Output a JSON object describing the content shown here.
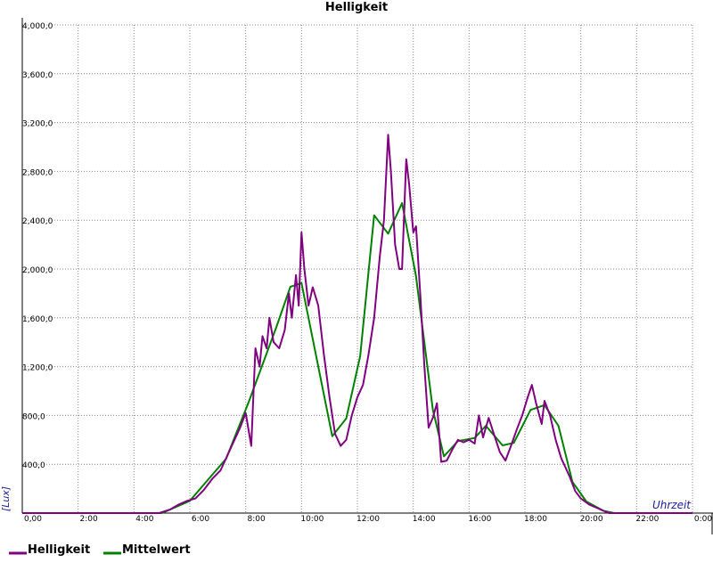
{
  "chart_data": {
    "type": "line",
    "title": "Helligkeit",
    "x_label": "Uhrzeit",
    "y_label": "[Lux]",
    "xlim": [
      0,
      24
    ],
    "ylim": [
      0,
      4000
    ],
    "grid": true,
    "xticks": [
      {
        "value": 0,
        "label": "0,00"
      },
      {
        "value": 2,
        "label": "2:00"
      },
      {
        "value": 4,
        "label": "4:00"
      },
      {
        "value": 6,
        "label": "6:00"
      },
      {
        "value": 8,
        "label": "8:00"
      },
      {
        "value": 10,
        "label": "10:00"
      },
      {
        "value": 12,
        "label": "12:00"
      },
      {
        "value": 14,
        "label": "14:00"
      },
      {
        "value": 16,
        "label": "16:00"
      },
      {
        "value": 18,
        "label": "18:00"
      },
      {
        "value": 20,
        "label": "20:00"
      },
      {
        "value": 22,
        "label": "22:00"
      },
      {
        "value": 24,
        "label": "0:00"
      }
    ],
    "yticks": [
      {
        "value": 400,
        "label": "400,0"
      },
      {
        "value": 800,
        "label": "800,0"
      },
      {
        "value": 1200,
        "label": "1,200,0"
      },
      {
        "value": 1600,
        "label": "1,600,0"
      },
      {
        "value": 2000,
        "label": "2,000,0"
      },
      {
        "value": 2400,
        "label": "2,400,0"
      },
      {
        "value": 2800,
        "label": "2,800,0"
      },
      {
        "value": 3200,
        "label": "3,200,0"
      },
      {
        "value": 3600,
        "label": "3,600,0"
      },
      {
        "value": 4000,
        "label": "4,000,0"
      }
    ],
    "series": [
      {
        "name": "Helligkeit",
        "color": "#800080",
        "x": [
          0,
          4.9,
          5.3,
          5.6,
          5.9,
          6.2,
          6.5,
          6.8,
          7.1,
          7.3,
          7.6,
          7.8,
          8.0,
          8.2,
          8.35,
          8.5,
          8.6,
          8.75,
          8.85,
          9.0,
          9.2,
          9.4,
          9.55,
          9.65,
          9.8,
          9.9,
          10.0,
          10.1,
          10.25,
          10.4,
          10.6,
          10.8,
          11.0,
          11.2,
          11.4,
          11.6,
          11.8,
          12.0,
          12.2,
          12.4,
          12.6,
          12.8,
          12.95,
          13.1,
          13.2,
          13.35,
          13.5,
          13.6,
          13.75,
          13.85,
          14.0,
          14.1,
          14.25,
          14.4,
          14.55,
          14.7,
          14.85,
          15.0,
          15.2,
          15.4,
          15.6,
          15.8,
          16.0,
          16.2,
          16.35,
          16.5,
          16.7,
          16.9,
          17.1,
          17.3,
          17.5,
          17.7,
          17.9,
          18.1,
          18.25,
          18.4,
          18.6,
          18.7,
          18.9,
          19.1,
          19.3,
          19.6,
          19.8,
          20.0,
          20.3,
          20.6,
          21.0,
          24
        ],
        "values": [
          0,
          0,
          30,
          70,
          100,
          120,
          190,
          280,
          350,
          450,
          600,
          700,
          820,
          550,
          1350,
          1200,
          1450,
          1350,
          1600,
          1400,
          1350,
          1500,
          1800,
          1600,
          1950,
          1700,
          2300,
          2000,
          1700,
          1850,
          1700,
          1300,
          950,
          650,
          550,
          600,
          800,
          950,
          1050,
          1300,
          1600,
          2100,
          2400,
          3100,
          2800,
          2200,
          2000,
          2000,
          2900,
          2700,
          2300,
          2350,
          1800,
          1200,
          700,
          780,
          900,
          420,
          430,
          520,
          600,
          580,
          600,
          570,
          800,
          620,
          780,
          640,
          500,
          430,
          550,
          680,
          800,
          950,
          1050,
          900,
          730,
          920,
          800,
          600,
          450,
          300,
          180,
          120,
          70,
          40,
          0,
          0
        ]
      },
      {
        "name": "Mittelwert",
        "color": "#008000",
        "x": [
          0,
          5.0,
          6.0,
          6.6,
          7.3,
          8.1,
          9.1,
          9.6,
          10.0,
          11.1,
          11.6,
          12.1,
          12.6,
          13.1,
          13.6,
          14.1,
          14.7,
          15.1,
          15.6,
          16.2,
          16.6,
          17.2,
          17.6,
          18.2,
          18.7,
          19.2,
          19.7,
          20.2,
          20.8,
          21.2,
          24
        ],
        "values": [
          0,
          0,
          100,
          260,
          445,
          905,
          1525,
          1855,
          1885,
          630,
          775,
          1285,
          2440,
          2290,
          2540,
          1940,
          850,
          465,
          590,
          615,
          715,
          555,
          575,
          845,
          885,
          715,
          255,
          95,
          20,
          0,
          0
        ]
      }
    ]
  }
}
